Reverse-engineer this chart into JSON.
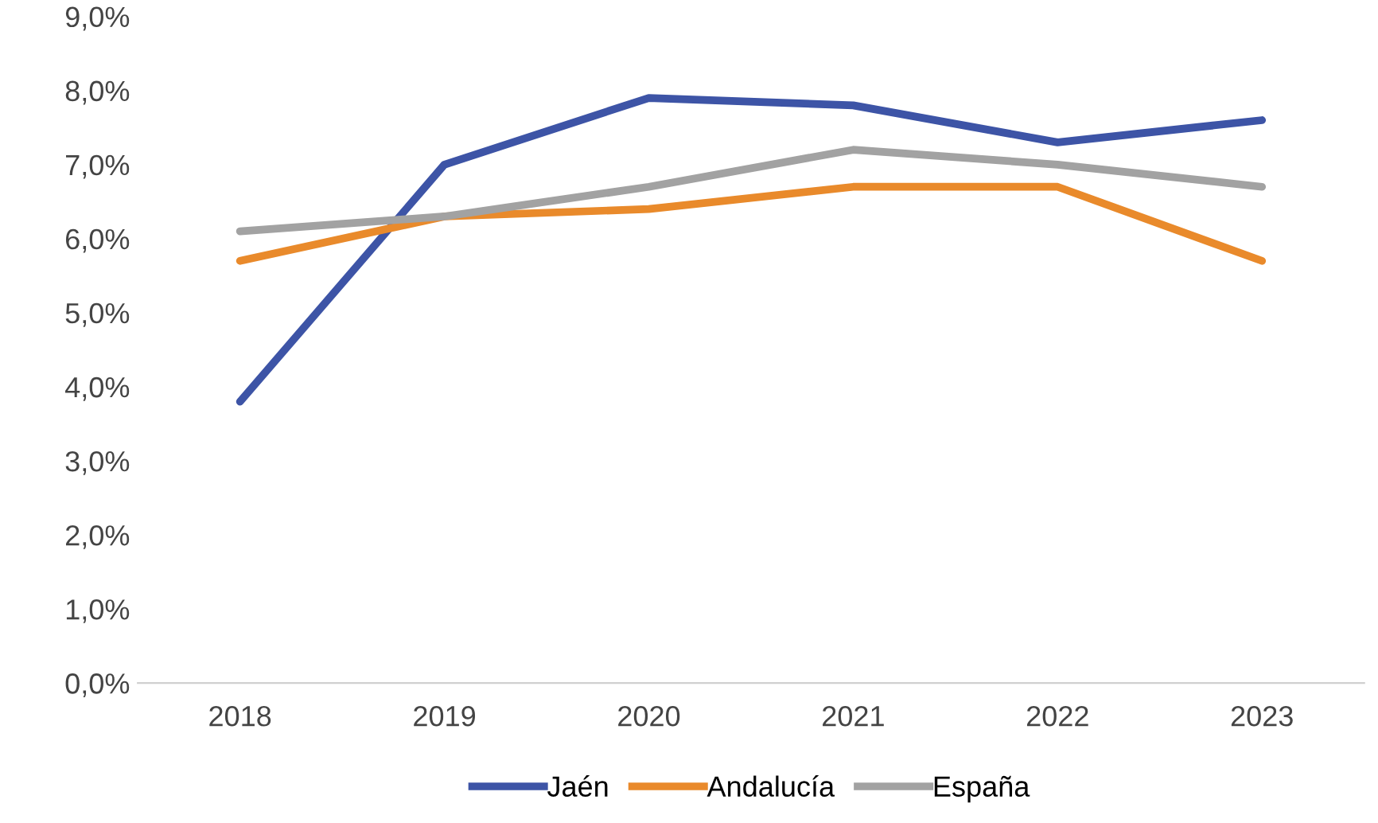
{
  "chart_data": {
    "type": "line",
    "categories": [
      "2018",
      "2019",
      "2020",
      "2021",
      "2022",
      "2023"
    ],
    "series": [
      {
        "name": "Jaén",
        "color": "#3d54a6",
        "values": [
          3.8,
          7.0,
          7.9,
          7.8,
          7.3,
          7.6
        ]
      },
      {
        "name": "Andalucía",
        "color": "#e98a2b",
        "values": [
          5.7,
          6.3,
          6.4,
          6.7,
          6.7,
          5.7
        ]
      },
      {
        "name": "España",
        "color": "#a2a2a2",
        "values": [
          6.1,
          6.3,
          6.7,
          7.2,
          7.0,
          6.7
        ]
      }
    ],
    "ylim": [
      0,
      9
    ],
    "yticks": [
      {
        "value": 0,
        "label": "0,0%"
      },
      {
        "value": 1,
        "label": "1,0%"
      },
      {
        "value": 2,
        "label": "2,0%"
      },
      {
        "value": 3,
        "label": "3,0%"
      },
      {
        "value": 4,
        "label": "4,0%"
      },
      {
        "value": 5,
        "label": "5,0%"
      },
      {
        "value": 6,
        "label": "6,0%"
      },
      {
        "value": 7,
        "label": "7,0%"
      },
      {
        "value": 8,
        "label": "8,0%"
      },
      {
        "value": 9,
        "label": "9,0%"
      }
    ],
    "grid": false,
    "legend": "bottom",
    "marker": "none",
    "line_style": "solid"
  }
}
